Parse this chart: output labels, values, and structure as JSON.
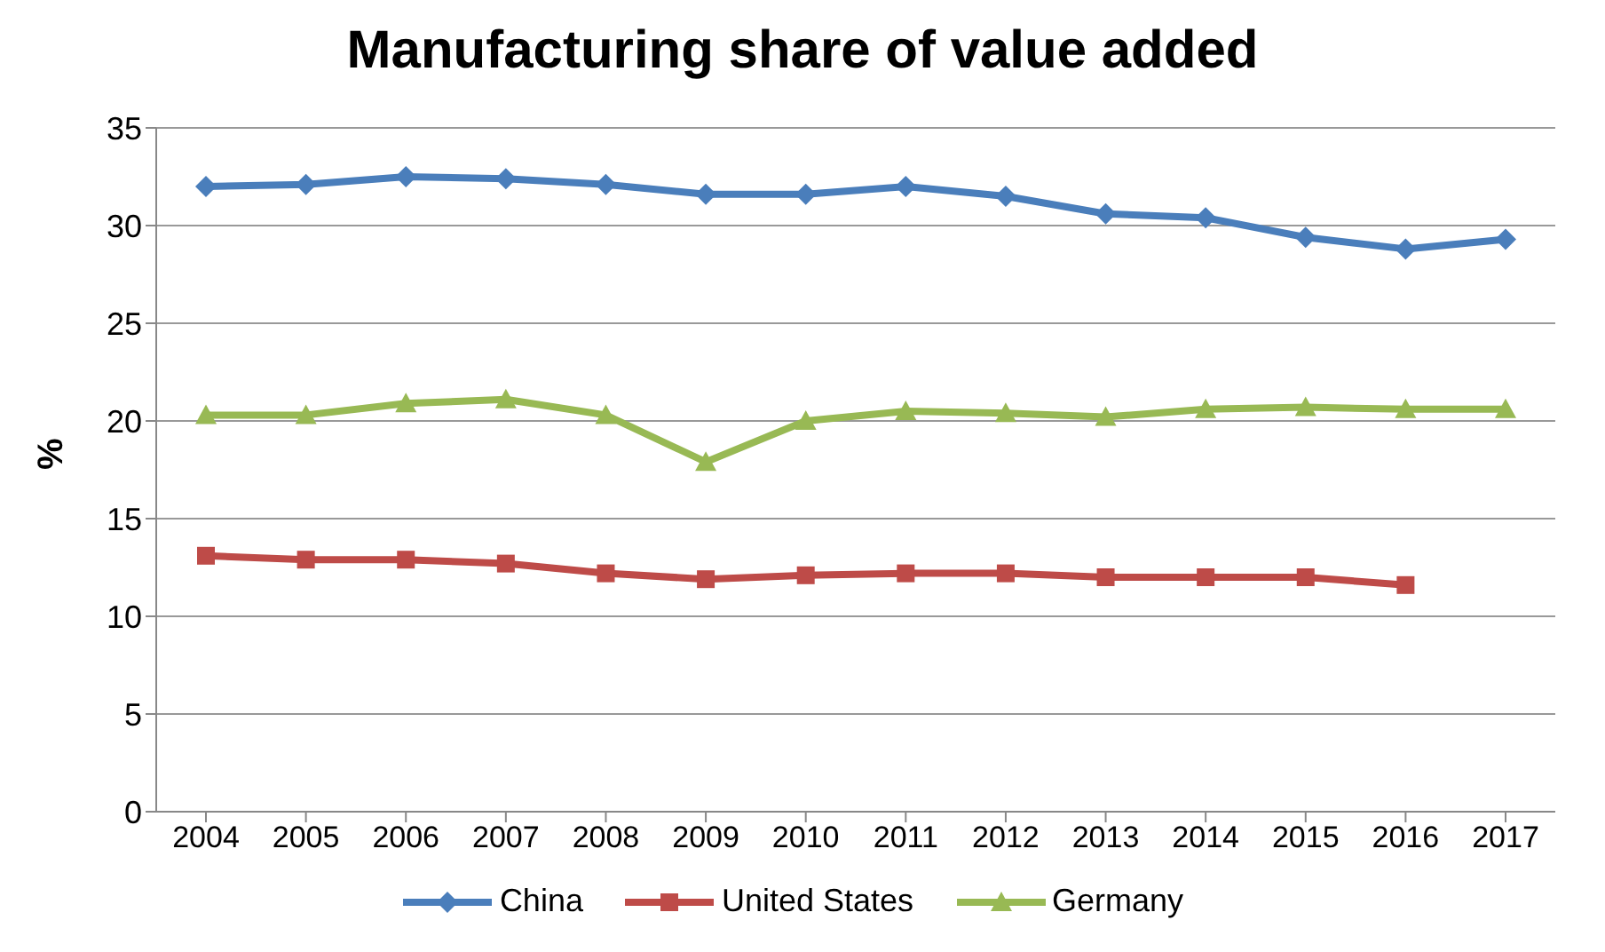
{
  "chart_data": {
    "type": "line",
    "title": "Manufacturing share of value added",
    "ylabel": "%",
    "categories": [
      "2004",
      "2005",
      "2006",
      "2007",
      "2008",
      "2009",
      "2010",
      "2011",
      "2012",
      "2013",
      "2014",
      "2015",
      "2016",
      "2017"
    ],
    "series": [
      {
        "name": "China",
        "color": "#4a7ebb",
        "marker": "diamond",
        "values": [
          32.0,
          32.1,
          32.5,
          32.4,
          32.1,
          31.6,
          31.6,
          32.0,
          31.5,
          30.6,
          30.4,
          29.4,
          28.8,
          29.3
        ]
      },
      {
        "name": "United States",
        "color": "#be4b48",
        "marker": "square",
        "values": [
          13.1,
          12.9,
          12.9,
          12.7,
          12.2,
          11.9,
          12.1,
          12.2,
          12.2,
          12.0,
          12.0,
          12.0,
          11.6,
          null
        ]
      },
      {
        "name": "Germany",
        "color": "#98b954",
        "marker": "triangle",
        "values": [
          20.3,
          20.3,
          20.9,
          21.1,
          20.3,
          17.9,
          20.0,
          20.5,
          20.4,
          20.2,
          20.6,
          20.7,
          20.6,
          20.6
        ]
      }
    ],
    "ylim": [
      0,
      35
    ],
    "yticks": [
      0,
      5,
      10,
      15,
      20,
      25,
      30,
      35
    ],
    "grid": "y",
    "legend": "bottom",
    "line_style": "solid"
  }
}
